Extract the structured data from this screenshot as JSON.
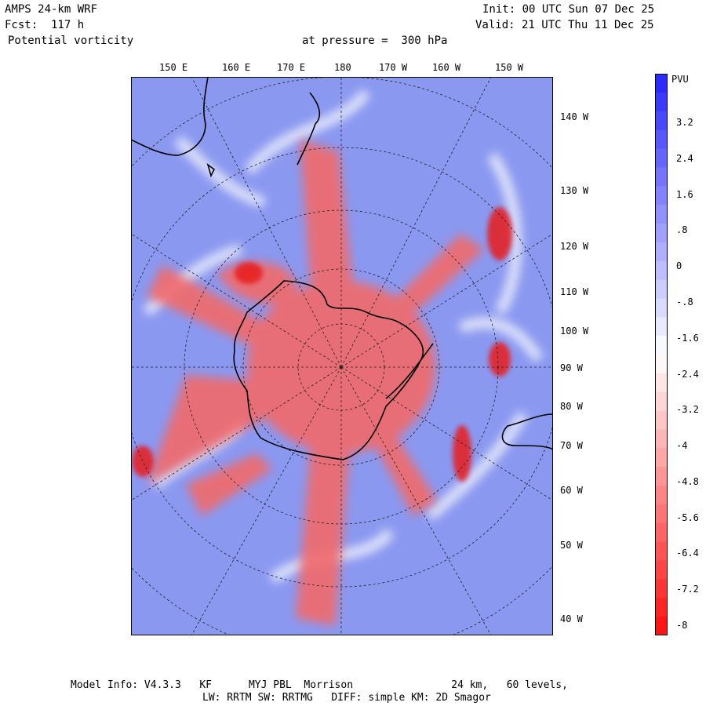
{
  "header": {
    "model": "AMPS 24-km WRF",
    "forecast": "Fcst:  117 h",
    "variable": "Potential vorticity",
    "level": "at pressure =  300 hPa",
    "init": "Init: 00 UTC Sun 07 Dec 25",
    "valid": "Valid: 21 UTC Thu 11 Dec 25"
  },
  "map": {
    "projection": "south-polar stereographic",
    "top_longitude_labels": [
      "150 E",
      "160 E",
      "170 E",
      "180",
      "170 W",
      "160 W",
      "150 W"
    ],
    "right_longitude_labels": [
      "140 W",
      "130 W",
      "120 W",
      "110 W",
      "100 W",
      "90 W",
      "80 W",
      "70 W",
      "60 W",
      "50 W",
      "40 W"
    ],
    "regions": [
      {
        "name": "Antarctica",
        "pv": "negative"
      },
      {
        "name": "New Zealand",
        "pv": "positive"
      },
      {
        "name": "Australia / Tasmania",
        "pv": "positive"
      },
      {
        "name": "South America",
        "pv": "positive"
      }
    ]
  },
  "colorbar": {
    "unit": "PVU",
    "labels": [
      "3.2",
      "2.4",
      "1.6",
      ".8",
      "0",
      "-.8",
      "-1.6",
      "-2.4",
      "-3.2",
      "-4",
      "-4.8",
      "-5.6",
      "-6.4",
      "-7.2",
      "-8"
    ],
    "range": [
      -8,
      4
    ],
    "positive_color": "#2b2bff",
    "neutral_color": "#ffffff",
    "negative_color": "#ff1414"
  },
  "footer": {
    "line1": "Model Info: V4.3.3   KF      MYJ PBL  Morrison                24 km,   60 levels,",
    "line2": "LW: RRTM SW: RRTMG   DIFF: simple KM: 2D Smagor"
  },
  "colors": {
    "ocean_background": "#8a98f0",
    "pv_red": "#f26060",
    "pv_red_strong": "#e81e1e",
    "pv_white": "#f4f0f8"
  }
}
